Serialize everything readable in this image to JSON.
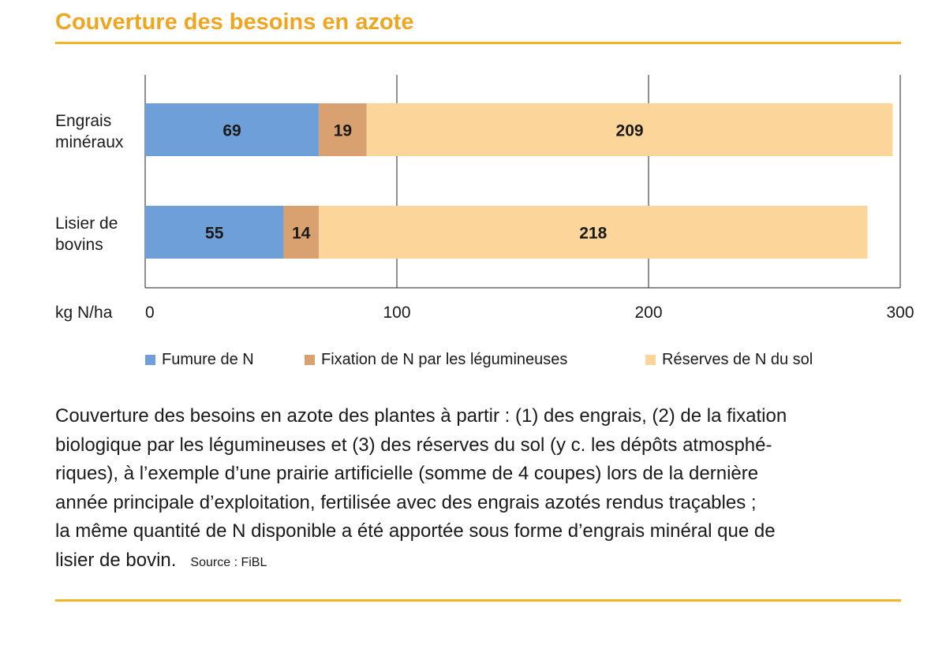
{
  "title": "Couverture des besoins en azote",
  "chart_data": {
    "type": "bar",
    "orientation": "horizontal",
    "stacked": true,
    "categories": [
      [
        "Engrais",
        "minéraux"
      ],
      [
        "Lisier de",
        "bovins"
      ]
    ],
    "series": [
      {
        "name": "Fumure de N",
        "values": [
          69,
          55
        ],
        "color": "#6f9fd8"
      },
      {
        "name": "Fixation de N par les légumineuses",
        "values": [
          19,
          14
        ],
        "color": "#d9a16f"
      },
      {
        "name": "Réserves de N du sol",
        "values": [
          209,
          218
        ],
        "color": "#fcd59a"
      }
    ],
    "xlabel": "kg N/ha",
    "xlim": [
      0,
      300
    ],
    "xticks": [
      0,
      100,
      200,
      300
    ],
    "grid": true,
    "legend": "bottom"
  },
  "caption": {
    "lines": [
      "Couverture des besoins en azote des plantes à partir : (1) des engrais, (2) de la fixation",
      "biologique par les légumineuses et (3) des réserves du sol (y c. les dépôts atmosphé-",
      "riques), à l’exemple d’une prairie artificielle (somme de 4 coupes) lors de la dernière",
      "année principale d’exploitation, fertilisée avec des engrais azotés rendus traçables ;",
      "la même quantité de N disponible a été apportée sous forme d’engrais minéral que de",
      "lisier de bovin."
    ],
    "source": "Source : FiBL"
  }
}
